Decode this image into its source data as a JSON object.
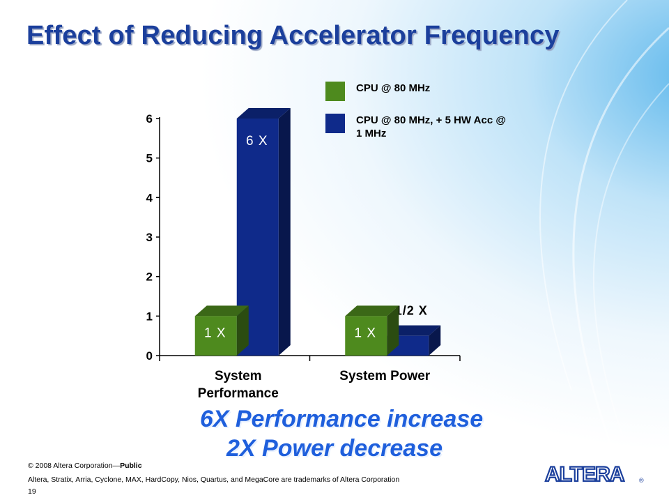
{
  "slide": {
    "title": "Effect of Reducing Accelerator Frequency",
    "headline_1": "6X Performance increase",
    "headline_2": "2X Power decrease",
    "footer_copyright": "© 2008 Altera Corporation—",
    "footer_public": "Public",
    "footer_trademarks": "Altera, Stratix, Arria, Cyclone, MAX, HardCopy, Nios, Quartus, and MegaCore are trademarks of Altera Corporation",
    "page_number": "19",
    "logo_text": "ALTERA",
    "logo_mark": "®"
  },
  "chart_data": {
    "type": "bar",
    "categories": [
      "System Performance",
      "System Power"
    ],
    "category_lines": [
      [
        "System",
        "Performance"
      ],
      [
        "System Power"
      ]
    ],
    "series": [
      {
        "name": "CPU @ 80 MHz",
        "values": [
          1,
          1
        ],
        "value_labels": [
          "1 X",
          "1 X"
        ],
        "color": "#4e8a1e"
      },
      {
        "name": "CPU @ 80 MHz, + 5 HW Acc @ 1 MHz",
        "values": [
          6,
          0.5
        ],
        "value_labels": [
          "6 X",
          "1/2 X"
        ],
        "color": "#0f2a8a"
      }
    ],
    "ylim": [
      0,
      6
    ],
    "yticks": [
      0,
      1,
      2,
      3,
      4,
      5,
      6
    ],
    "xlabel": "",
    "ylabel": "",
    "legend_position": "top-right",
    "grid": false
  }
}
